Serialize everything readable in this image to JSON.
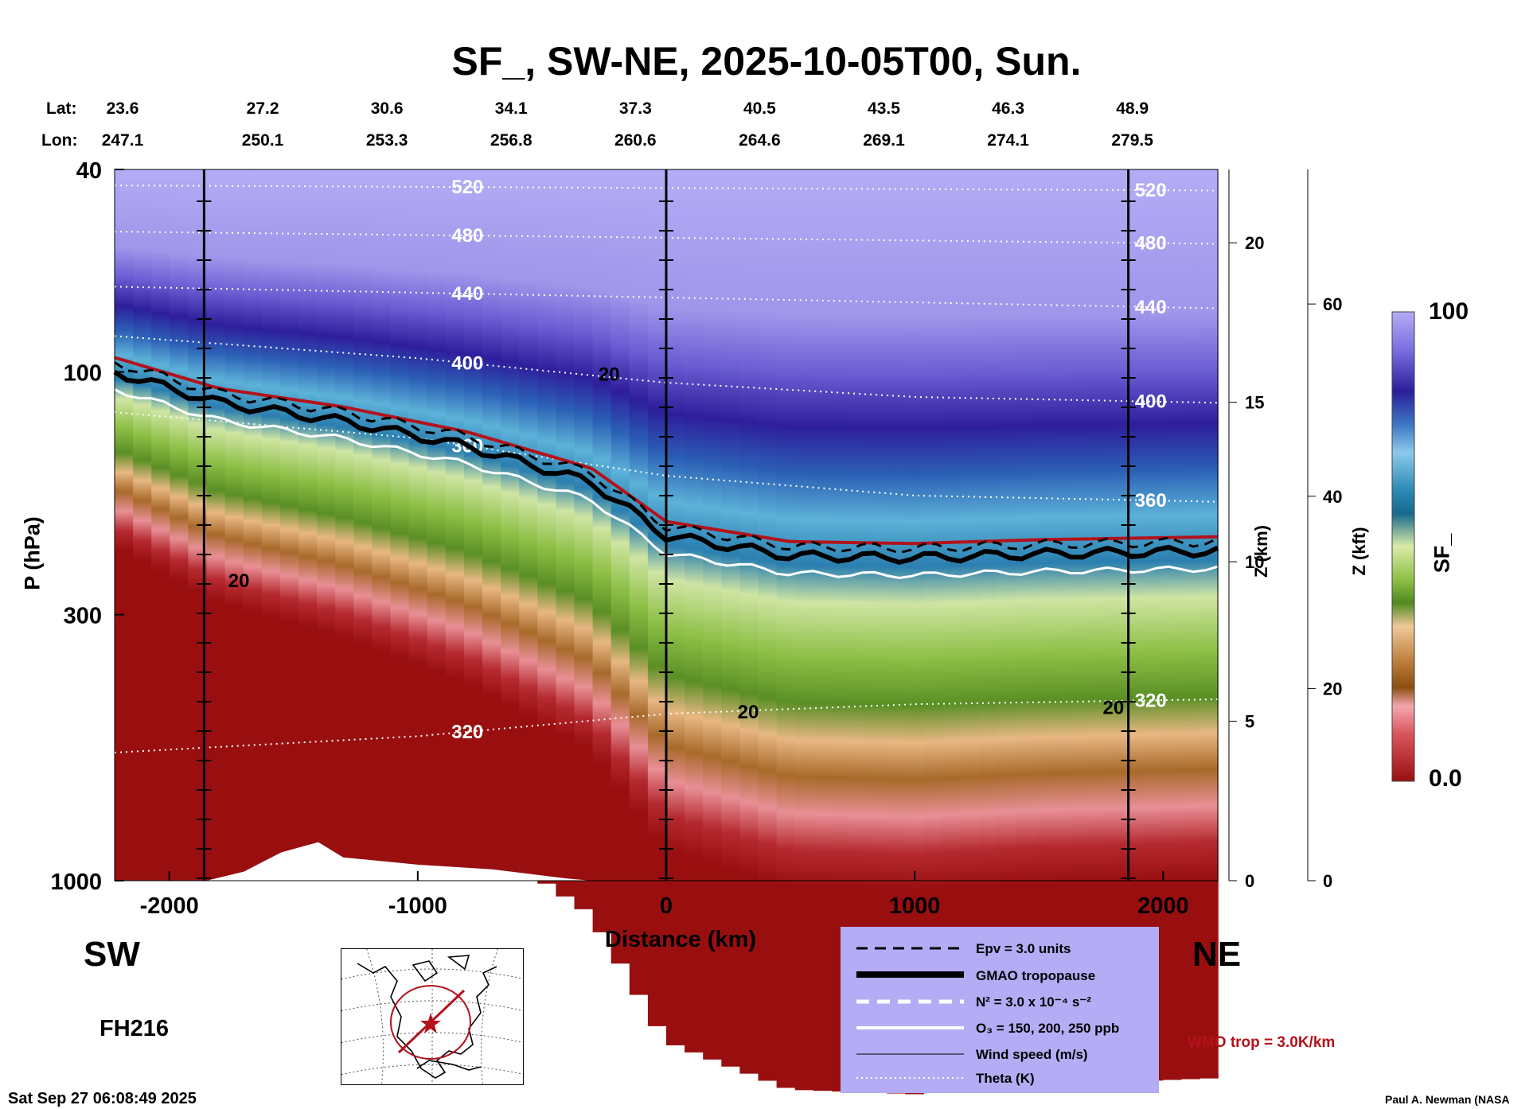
{
  "title": "SF_, SW-NE, 2025-10-05T00, Sun.",
  "header": {
    "lat_label": "Lat:",
    "lon_label": "Lon:",
    "lat": [
      "23.6",
      "27.2",
      "30.6",
      "34.1",
      "37.3",
      "40.5",
      "43.5",
      "46.3",
      "48.9"
    ],
    "lon": [
      "247.1",
      "250.1",
      "253.3",
      "256.8",
      "260.6",
      "264.6",
      "269.1",
      "274.1",
      "279.5"
    ]
  },
  "direction": {
    "left": "SW",
    "right": "NE"
  },
  "forecast_hour": "FH216",
  "timestamp": "Sat Sep 27 06:08:49 2025",
  "credit": "Paul A. Newman (NASA",
  "wmo_note": "WMO trop = 3.0K/km",
  "legend": [
    {
      "label": "Epv = 3.0 units",
      "style": "dashed-black"
    },
    {
      "label": "GMAO tropopause",
      "style": "thick-black"
    },
    {
      "label": "N² = 3.0 x 10⁻⁴ s⁻²",
      "style": "dashed-white"
    },
    {
      "label": "O₃ = 150, 200, 250 ppb",
      "style": "solid-white"
    },
    {
      "label": "Wind speed (m/s)",
      "style": "thin-black"
    },
    {
      "label": "Theta (K)",
      "style": "dotted-white"
    }
  ],
  "colors": {
    "legend_bg": "#b4acf5",
    "tropopause_red": "#b3121a",
    "low_strat": "#990f10",
    "high_strat": "#b4acf5"
  },
  "chart_data": {
    "type": "heatmap",
    "xlabel": "Distance (km)",
    "ylabel": "P (hPa)",
    "xlim": [
      -2220,
      2220
    ],
    "ylim": [
      1000,
      40
    ],
    "x_ticks": [
      -2000,
      -1000,
      0,
      1000,
      2000
    ],
    "y_ticks": [
      40,
      100,
      300,
      1000
    ],
    "y_scale": "log",
    "z_km_label": "Z (km)",
    "z_km_ticks": [
      0,
      5,
      10,
      15,
      20
    ],
    "z_kft_label": "Z (kft)",
    "z_kft_ticks": [
      0,
      20,
      40,
      60
    ],
    "vertical_lines_km": [
      -1860,
      0,
      1860
    ],
    "colorbar": {
      "label": "SF_",
      "min": "0.0",
      "max": "100"
    },
    "field_profile": {
      "x": [
        -2220,
        -1800,
        -1300,
        -800,
        -300,
        0,
        500,
        1000,
        1500,
        2220
      ],
      "tropopause_hPa": [
        100,
        115,
        125,
        140,
        165,
        210,
        230,
        232,
        228,
        225
      ]
    },
    "theta_contours": [
      {
        "label": "520",
        "x": [
          -2220,
          2220
        ],
        "p": [
          43,
          44
        ]
      },
      {
        "label": "480",
        "x": [
          -2220,
          2220
        ],
        "p": [
          53,
          56
        ]
      },
      {
        "label": "440",
        "x": [
          -2220,
          2220
        ],
        "p": [
          68,
          75
        ]
      },
      {
        "label": "400",
        "x": [
          -2220,
          -1000,
          0,
          1000,
          2220
        ],
        "p": [
          85,
          94,
          105,
          112,
          115
        ]
      },
      {
        "label": "360",
        "x": [
          -2220,
          -1000,
          0,
          1000,
          2220
        ],
        "p": [
          120,
          135,
          160,
          175,
          180
        ]
      },
      {
        "label": "320",
        "x": [
          -2220,
          -1000,
          0,
          1000,
          2220
        ],
        "p": [
          560,
          520,
          470,
          450,
          440
        ]
      }
    ],
    "wind_labels": [
      {
        "label": "20",
        "x": -230,
        "p": 104
      },
      {
        "label": "20",
        "x": -1720,
        "p": 265
      },
      {
        "label": "20",
        "x": 330,
        "p": 480
      },
      {
        "label": "20",
        "x": 1800,
        "p": 470
      }
    ]
  }
}
